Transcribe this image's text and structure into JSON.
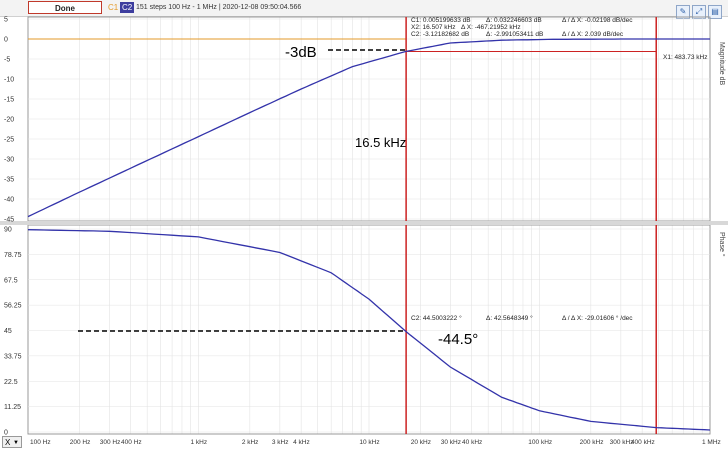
{
  "toolbar": {
    "done_label": "Done",
    "channel1_label": "C1",
    "channel2_label": "C2",
    "sweep_info": "151 steps  100 Hz - 1 MHz | 2020-12-08 09:50:04.566"
  },
  "top_panel": {
    "right_label": "Magnitude dB",
    "y_ticks": [
      "5",
      "0",
      "-5",
      "-10",
      "-15",
      "-20",
      "-25",
      "-30",
      "-35",
      "-40",
      "-45"
    ],
    "cursor_readout": {
      "c1": "C1: 0.005199633 dB",
      "c1_delta": "Δ: 0.032246603 dB",
      "c1_slope": "Δ / Δ X: -0.02198 dB/dec",
      "x2": "X2: 16.507 kHz",
      "dx": "Δ X: -467.21952 kHz",
      "c2": "C2: -3.12182682 dB",
      "c2_delta": "Δ: -2.991053411 dB",
      "c2_slope": "Δ / Δ X: 2.039 dB/dec",
      "x1": "X1: 483.73 kHz"
    },
    "annotation_db": "-3dB",
    "annotation_freq": "16.5 kHz"
  },
  "bottom_panel": {
    "right_label": "Phase °",
    "y_ticks": [
      "90",
      "78.75",
      "67.5",
      "56.25",
      "45",
      "33.75",
      "22.5",
      "11.25",
      "0"
    ],
    "cursor_readout": {
      "c2": "C2: 44.5003222 °",
      "delta": "Δ: 42.5648349 °",
      "slope": "Δ / Δ X: -29.01606 ° /dec"
    },
    "annotation_phase": "-44.5°"
  },
  "x_axis": {
    "selector": "X",
    "ticks": [
      "100 Hz",
      "200 Hz",
      "300 Hz",
      "400 Hz",
      "1 kHz",
      "2 kHz",
      "3 kHz",
      "4 kHz",
      "10 kHz",
      "20 kHz",
      "30 kHz",
      "40 kHz",
      "100 kHz",
      "200 kHz",
      "300 kHz",
      "400 kHz",
      "1 MHz"
    ],
    "tick_freqs": [
      100,
      200,
      300,
      400,
      1000,
      2000,
      3000,
      4000,
      10000,
      20000,
      30000,
      40000,
      100000,
      200000,
      300000,
      400000,
      1000000
    ]
  },
  "cursors": {
    "x2_freq_hz": 16507,
    "x1_freq_hz": 483730,
    "c1_level_db": 0.005,
    "c2_level_db": -3.12
  },
  "colors": {
    "trace": "#3333aa",
    "cursor": "#cc2222",
    "ref": "#e39a2a",
    "grid": "#dddddd"
  },
  "chart_data": [
    {
      "type": "line",
      "title": "",
      "ylabel": "Magnitude dB",
      "xscale": "log",
      "xlim": [
        100,
        1000000
      ],
      "ylim": [
        -45,
        5
      ],
      "series": [
        {
          "x": [
            100,
            200,
            400,
            1000,
            2000,
            4000,
            8000,
            16507,
            30000,
            60000,
            120000,
            300000,
            1000000
          ],
          "y": [
            -44.4,
            -38.3,
            -32.3,
            -24.4,
            -18.4,
            -12.5,
            -6.9,
            -3.1,
            -1.0,
            -0.3,
            -0.08,
            -0.01,
            0.0
          ]
        }
      ]
    },
    {
      "type": "line",
      "title": "",
      "ylabel": "Phase °",
      "xscale": "log",
      "xlim": [
        100,
        1000000
      ],
      "ylim": [
        0,
        90
      ],
      "series": [
        {
          "x": [
            100,
            300,
            1000,
            3000,
            6000,
            10000,
            16507,
            30000,
            60000,
            100000,
            200000,
            483730,
            1000000
          ],
          "y": [
            89.7,
            89.0,
            86.5,
            79.6,
            70.6,
            58.9,
            44.5,
            28.8,
            15.4,
            9.4,
            4.7,
            1.95,
            0.9
          ]
        }
      ]
    }
  ]
}
